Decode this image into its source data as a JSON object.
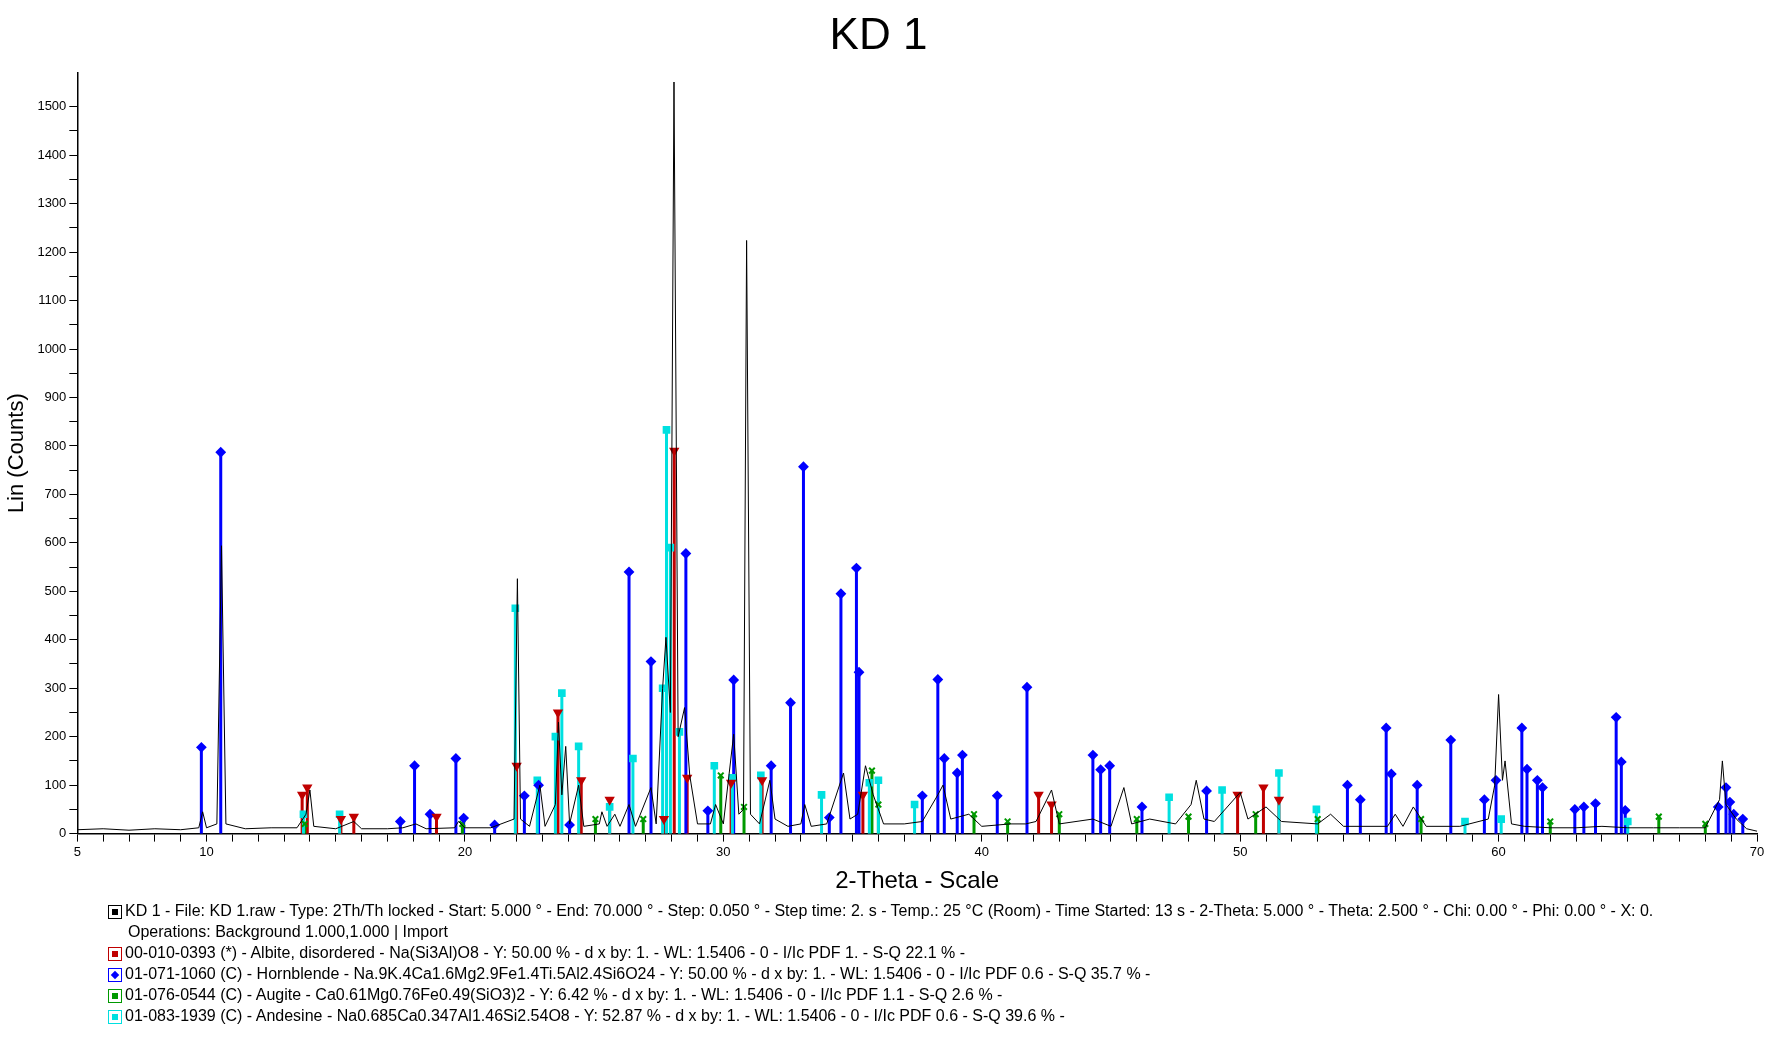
{
  "chart_data": {
    "type": "line",
    "title": "KD 1",
    "xlabel": "2-Theta - Scale",
    "ylabel": "Lin (Counts)",
    "xlim": [
      5,
      70
    ],
    "ylim": [
      0,
      1570
    ],
    "xticks": [
      5,
      {
        "value": 6,
        "label": null
      },
      {
        "value": 7,
        "label": null
      },
      {
        "value": 8,
        "label": null
      },
      {
        "value": 9,
        "label": null
      },
      10,
      {
        "value": 11,
        "label": null
      },
      {
        "value": 12,
        "label": null
      },
      {
        "value": 13,
        "label": null
      },
      {
        "value": 14,
        "label": null
      },
      {
        "value": 15,
        "label": null
      },
      {
        "value": 16,
        "label": null
      },
      {
        "value": 17,
        "label": null
      },
      {
        "value": 18,
        "label": null
      },
      {
        "value": 19,
        "label": null
      },
      20,
      {
        "value": 21,
        "label": null
      },
      {
        "value": 22,
        "label": null
      },
      {
        "value": 23,
        "label": null
      },
      {
        "value": 24,
        "label": null
      },
      {
        "value": 25,
        "label": null
      },
      {
        "value": 26,
        "label": null
      },
      {
        "value": 27,
        "label": null
      },
      {
        "value": 28,
        "label": null
      },
      {
        "value": 29,
        "label": null
      },
      30,
      {
        "value": 31,
        "label": null
      },
      {
        "value": 32,
        "label": null
      },
      {
        "value": 33,
        "label": null
      },
      {
        "value": 34,
        "label": null
      },
      {
        "value": 35,
        "label": null
      },
      {
        "value": 36,
        "label": null
      },
      {
        "value": 37,
        "label": null
      },
      {
        "value": 38,
        "label": null
      },
      {
        "value": 39,
        "label": null
      },
      40,
      {
        "value": 41,
        "label": null
      },
      {
        "value": 42,
        "label": null
      },
      {
        "value": 43,
        "label": null
      },
      {
        "value": 44,
        "label": null
      },
      {
        "value": 45,
        "label": null
      },
      {
        "value": 46,
        "label": null
      },
      {
        "value": 47,
        "label": null
      },
      {
        "value": 48,
        "label": null
      },
      {
        "value": 49,
        "label": null
      },
      50,
      {
        "value": 51,
        "label": null
      },
      {
        "value": 52,
        "label": null
      },
      {
        "value": 53,
        "label": null
      },
      {
        "value": 54,
        "label": null
      },
      {
        "value": 55,
        "label": null
      },
      {
        "value": 56,
        "label": null
      },
      {
        "value": 57,
        "label": null
      },
      {
        "value": 58,
        "label": null
      },
      {
        "value": 59,
        "label": null
      },
      60,
      {
        "value": 61,
        "label": null
      },
      {
        "value": 62,
        "label": null
      },
      {
        "value": 63,
        "label": null
      },
      {
        "value": 64,
        "label": null
      },
      {
        "value": 65,
        "label": null
      },
      {
        "value": 66,
        "label": null
      },
      {
        "value": 67,
        "label": null
      },
      {
        "value": 68,
        "label": null
      },
      {
        "value": 69,
        "label": null
      },
      70
    ],
    "yticks": [
      0,
      {
        "value": 50,
        "label": null
      },
      100,
      {
        "value": 150,
        "label": null
      },
      200,
      {
        "value": 250,
        "label": null
      },
      300,
      {
        "value": 350,
        "label": null
      },
      400,
      {
        "value": 450,
        "label": null
      },
      500,
      {
        "value": 550,
        "label": null
      },
      600,
      {
        "value": 650,
        "label": null
      },
      700,
      {
        "value": 750,
        "label": null
      },
      800,
      {
        "value": 850,
        "label": null
      },
      900,
      {
        "value": 950,
        "label": null
      },
      1000,
      {
        "value": 1050,
        "label": null
      },
      1100,
      {
        "value": 1150,
        "label": null
      },
      1200,
      {
        "value": 1250,
        "label": null
      },
      1300,
      {
        "value": 1350,
        "label": null
      },
      1400,
      {
        "value": 1450,
        "label": null
      },
      1500
    ],
    "legend": "bottom",
    "annotations": [
      "Operations: Background 1.000,1.000 | Import"
    ],
    "series": [
      {
        "name": "KD 1 - File: KD 1.raw - Type: 2Th/Th locked - Start: 5.000 ° - End: 70.000 ° - Step: 0.050 ° - Step time: 2. s - Temp.: 25 °C (Room) - Time Started: 13 s - 2-Theta: 5.000 ° - Theta: 2.500 ° - Chi: 0.00 ° - Phi: 0.00 ° - X: 0.",
        "color": "#000000",
        "marker": "none",
        "x": [
          5,
          6,
          7,
          8,
          9,
          9.7,
          9.85,
          10.0,
          10.4,
          10.58,
          10.75,
          11.5,
          12.5,
          13.5,
          13.85,
          14.0,
          14.15,
          15,
          15.7,
          16,
          17,
          17.6,
          18.1,
          18.5,
          19.6,
          19.75,
          20,
          21,
          21.9,
          22.03,
          22.15,
          22.5,
          22.9,
          23.1,
          23.5,
          23.62,
          23.75,
          23.9,
          24.05,
          24.4,
          24.6,
          25.2,
          25.3,
          25.5,
          25.8,
          26.0,
          26.35,
          26.6,
          27.2,
          27.4,
          27.65,
          27.78,
          27.95,
          28.09,
          28.25,
          28.5,
          28.7,
          29.0,
          29.5,
          29.7,
          30.0,
          30.4,
          30.6,
          30.78,
          30.9,
          31.05,
          31.4,
          31.8,
          32.0,
          32.5,
          33.0,
          33.15,
          33.4,
          34.0,
          34.65,
          34.9,
          35.2,
          35.5,
          35.8,
          36.2,
          37,
          37.7,
          38.3,
          38.5,
          38.8,
          39.5,
          40,
          41.1,
          41.7,
          42.1,
          42.7,
          43.0,
          44.3,
          45.0,
          45.5,
          45.8,
          46.5,
          47.5,
          48.1,
          48.3,
          48.6,
          49.0,
          50.0,
          50.3,
          51.0,
          51.6,
          53,
          53.5,
          54,
          55.7,
          56.0,
          56.3,
          56.7,
          57.2,
          58.5,
          59.6,
          59.85,
          60.0,
          60.15,
          60.25,
          60.5,
          61,
          62,
          63,
          64,
          65,
          66,
          67,
          68,
          68.55,
          68.66,
          68.8,
          69.2,
          69.6,
          70
        ],
        "values": [
          8,
          10,
          7,
          10,
          8,
          12,
          45,
          12,
          20,
          594,
          20,
          10,
          12,
          12,
          40,
          90,
          15,
          10,
          25,
          10,
          10,
          12,
          20,
          10,
          12,
          25,
          12,
          12,
          30,
          526,
          30,
          15,
          100,
          15,
          60,
          230,
          80,
          180,
          20,
          100,
          15,
          20,
          45,
          15,
          40,
          15,
          60,
          15,
          95,
          20,
          300,
          405,
          250,
          1551,
          200,
          260,
          120,
          20,
          20,
          60,
          20,
          205,
          40,
          50,
          1224,
          40,
          20,
          110,
          30,
          15,
          20,
          60,
          15,
          20,
          125,
          30,
          40,
          140,
          80,
          20,
          20,
          25,
          80,
          100,
          30,
          40,
          15,
          20,
          20,
          25,
          90,
          20,
          30,
          15,
          95,
          20,
          30,
          20,
          60,
          110,
          30,
          25,
          85,
          30,
          55,
          25,
          20,
          40,
          15,
          15,
          40,
          15,
          55,
          15,
          15,
          30,
          100,
          287,
          110,
          150,
          20,
          15,
          12,
          12,
          15,
          12,
          12,
          12,
          12,
          70,
          150,
          60,
          30,
          10,
          5
        ]
      },
      {
        "name": "00-010-0393 (*) - Albite, disordered - Na(Si3Al)O8 - Y: 50.00 % - d x by: 1. - WL: 1.5406 - 0 - I/Ic PDF 1. - S-Q 22.1 % -",
        "type": "lollipop",
        "color": "#c00000",
        "marker": "triangle",
        "x": [
          13.7,
          13.9,
          15.2,
          15.7,
          18.9,
          22.0,
          23.6,
          24.5,
          25.6,
          27.7,
          28.1,
          28.6,
          30.3,
          31.5,
          35.4,
          42.2,
          42.7,
          49.9,
          50.9,
          51.5
        ],
        "values": [
          80,
          95,
          30,
          35,
          35,
          140,
          250,
          110,
          70,
          30,
          790,
          115,
          105,
          110,
          80,
          80,
          60,
          80,
          95,
          70
        ]
      },
      {
        "name": "01-071-1060 (C) - Hornblende - Na.9K.4Ca1.6Mg2.9Fe1.4Ti.5Al2.4Si6O24 - Y: 50.00 % - d x by: 1. - WL: 1.5406 - 0 - I/Ic PDF 0.6 - S-Q 35.7 % -",
        "type": "lollipop",
        "color": "#0000ff",
        "marker": "diamond",
        "x": [
          9.8,
          10.55,
          17.5,
          18.05,
          18.65,
          19.65,
          19.95,
          21.15,
          22.3,
          22.85,
          24.05,
          26.35,
          27.2,
          28.55,
          29.4,
          30.4,
          31.85,
          32.6,
          33.1,
          34.1,
          34.55,
          35.15,
          35.25,
          37.7,
          38.3,
          38.55,
          39.05,
          39.25,
          40.6,
          41.75,
          44.3,
          44.6,
          44.95,
          46.2,
          48.7,
          54.15,
          54.65,
          55.65,
          55.85,
          56.85,
          58.15,
          59.45,
          59.9,
          60.9,
          61.1,
          61.5,
          61.7,
          62.95,
          63.3,
          63.75,
          64.55,
          64.75,
          64.9,
          68.5,
          68.8,
          68.95,
          69.1,
          69.45
        ],
        "values": [
          178,
          787,
          25,
          140,
          40,
          155,
          32,
          18,
          78,
          100,
          18,
          540,
          355,
          578,
          47,
          317,
          140,
          270,
          757,
          33,
          495,
          548,
          333,
          78,
          318,
          155,
          125,
          162,
          78,
          302,
          162,
          132,
          140,
          55,
          88,
          100,
          70,
          218,
          123,
          100,
          193,
          70,
          110,
          218,
          133,
          110,
          95,
          50,
          55,
          62,
          240,
          148,
          48,
          55,
          95,
          65,
          40,
          30
        ]
      },
      {
        "name": "01-076-0544 (C) - Augite - Ca0.61Mg0.76Fe0.49(SiO3)2 - Y: 6.42 % - d x by: 1. - WL: 1.5406 - 0 - I/Ic PDF 1.1 - S-Q 2.6 % -",
        "type": "lollipop",
        "color": "#009900",
        "marker": "cross",
        "x": [
          13.8,
          19.9,
          25.05,
          26.9,
          29.9,
          30.8,
          35.75,
          36.0,
          39.7,
          41.0,
          43.0,
          46.0,
          48.0,
          50.6,
          53.0,
          57.0,
          62.0,
          66.2,
          68.0
        ],
        "values": [
          20,
          20,
          30,
          30,
          120,
          55,
          130,
          60,
          40,
          25,
          40,
          30,
          35,
          40,
          30,
          30,
          25,
          35,
          20
        ]
      },
      {
        "name": "01-083-1939 (C) - Andesine - Na0.685Ca0.347Al1.46Si2.54O8 - Y: 52.87 % - d x by: 1. - WL: 1.5406 - 0 - I/Ic PDF 0.6 - S-Q 39.6 % -",
        "type": "lollipop",
        "color": "#00e0e0",
        "marker": "square",
        "x": [
          13.75,
          15.15,
          21.95,
          22.8,
          23.5,
          23.75,
          24.4,
          25.6,
          26.5,
          27.65,
          27.8,
          27.95,
          28.3,
          29.65,
          30.35,
          31.45,
          33.8,
          35.65,
          36.0,
          37.4,
          47.25,
          49.3,
          51.5,
          52.95,
          58.7,
          60.1,
          65.0
        ],
        "values": [
          40,
          40,
          465,
          110,
          200,
          290,
          180,
          55,
          155,
          300,
          833,
          590,
          210,
          140,
          115,
          120,
          80,
          105,
          110,
          60,
          75,
          90,
          125,
          50,
          25,
          30,
          25
        ]
      }
    ]
  }
}
